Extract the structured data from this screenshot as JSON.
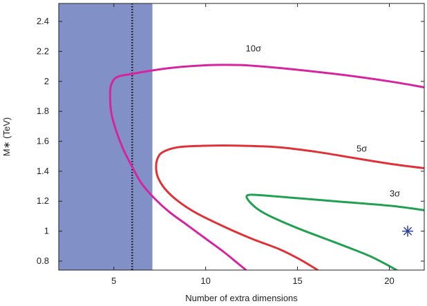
{
  "chart_data": {
    "type": "line",
    "xlabel": "Number of extra dimensions",
    "ylabel": "M∗ (TeV)",
    "xlim": [
      2,
      21.9
    ],
    "ylim": [
      0.74,
      2.52
    ],
    "xticks": [
      5,
      10,
      15,
      20
    ],
    "yticks": [
      0.8,
      1,
      1.2,
      1.4,
      1.6,
      1.8,
      2,
      2.2,
      2.4
    ],
    "xtick_labels": [
      "5",
      "10",
      "15",
      "20"
    ],
    "ytick_labels": [
      "0.8",
      "1",
      "1.2",
      "1.4",
      "1.6",
      "1.8",
      "2",
      "2.2",
      "2.4"
    ],
    "excluded_band": {
      "x_range": [
        2,
        7.1
      ],
      "color": "#8290c8"
    },
    "dotted_line": {
      "x": 6,
      "color": "#111111"
    },
    "marker": {
      "x": 21,
      "y": 1.0,
      "symbol": "asterisk",
      "color": "#2a3e9e"
    },
    "series": [
      {
        "name": "10σ",
        "color": "#d6249f",
        "label_pos": [
          12.6,
          2.2
        ],
        "points": [
          [
            21.9,
            1.96
          ],
          [
            20,
            2.0
          ],
          [
            17,
            2.05
          ],
          [
            13,
            2.1
          ],
          [
            11,
            2.11
          ],
          [
            9,
            2.1
          ],
          [
            7.5,
            2.08
          ],
          [
            6,
            2.05
          ],
          [
            5.2,
            2.03
          ],
          [
            4.9,
            1.99
          ],
          [
            4.8,
            1.93
          ],
          [
            4.85,
            1.8
          ],
          [
            5.1,
            1.68
          ],
          [
            5.5,
            1.55
          ],
          [
            6,
            1.43
          ],
          [
            6.5,
            1.32
          ],
          [
            7.2,
            1.22
          ],
          [
            8,
            1.13
          ],
          [
            9,
            1.04
          ],
          [
            10,
            0.95
          ],
          [
            11,
            0.86
          ],
          [
            11.7,
            0.79
          ],
          [
            12.2,
            0.74
          ]
        ]
      },
      {
        "name": "5σ",
        "color": "#e03038",
        "label_pos": [
          18.5,
          1.53
        ],
        "points": [
          [
            21.9,
            1.42
          ],
          [
            20,
            1.45
          ],
          [
            18,
            1.49
          ],
          [
            16,
            1.53
          ],
          [
            14,
            1.56
          ],
          [
            12,
            1.57
          ],
          [
            10,
            1.57
          ],
          [
            8.5,
            1.56
          ],
          [
            7.7,
            1.53
          ],
          [
            7.4,
            1.49
          ],
          [
            7.3,
            1.43
          ],
          [
            7.4,
            1.36
          ],
          [
            7.8,
            1.28
          ],
          [
            8.5,
            1.2
          ],
          [
            9.5,
            1.12
          ],
          [
            11,
            1.03
          ],
          [
            12.5,
            0.95
          ],
          [
            14,
            0.88
          ],
          [
            15,
            0.82
          ],
          [
            15.7,
            0.77
          ],
          [
            16.1,
            0.74
          ]
        ]
      },
      {
        "name": "3σ",
        "color": "#20a050",
        "label_pos": [
          20.3,
          1.23
        ],
        "points": [
          [
            21.9,
            1.14
          ],
          [
            20,
            1.17
          ],
          [
            17,
            1.2
          ],
          [
            15,
            1.22
          ],
          [
            13,
            1.24
          ],
          [
            12.3,
            1.24
          ],
          [
            12.3,
            1.21
          ],
          [
            12.8,
            1.15
          ],
          [
            13.5,
            1.1
          ],
          [
            15,
            1.02
          ],
          [
            16.5,
            0.95
          ],
          [
            18,
            0.88
          ],
          [
            19,
            0.83
          ],
          [
            19.8,
            0.78
          ],
          [
            20.4,
            0.74
          ]
        ]
      }
    ]
  }
}
